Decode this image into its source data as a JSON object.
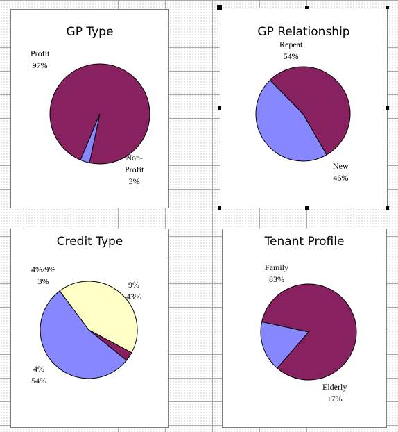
{
  "colors": {
    "maroon": "#87215f",
    "periwinkle": "#8787ff",
    "pale_yellow": "#ffffc6",
    "outline": "#000000"
  },
  "charts": [
    {
      "id": "gp-type",
      "title": "GP Type",
      "slices": [
        {
          "label": "Profit",
          "pct": "97%",
          "value": 97,
          "color": "maroon"
        },
        {
          "label": "Non-Profit",
          "label_lines": [
            "Non-",
            "Profit"
          ],
          "pct": "3%",
          "value": 3,
          "color": "periwinkle"
        }
      ]
    },
    {
      "id": "gp-relationship",
      "title": "GP Relationship",
      "selected": true,
      "slices": [
        {
          "label": "Repeat",
          "pct": "54%",
          "value": 54,
          "color": "maroon"
        },
        {
          "label": "New",
          "pct": "46%",
          "value": 46,
          "color": "periwinkle"
        }
      ]
    },
    {
      "id": "credit-type",
      "title": "Credit Type",
      "slices": [
        {
          "label": "9%",
          "pct": "43%",
          "value": 43,
          "color": "pale_yellow"
        },
        {
          "label": "4%",
          "pct": "54%",
          "value": 54,
          "color": "periwinkle"
        },
        {
          "label": "4%/9%",
          "pct": "3%",
          "value": 3,
          "color": "maroon"
        }
      ]
    },
    {
      "id": "tenant-profile",
      "title": "Tenant Profile",
      "slices": [
        {
          "label": "Family",
          "pct": "83%",
          "value": 83,
          "color": "maroon"
        },
        {
          "label": "Elderly",
          "pct": "17%",
          "value": 17,
          "color": "periwinkle"
        }
      ]
    }
  ],
  "chart_data": [
    {
      "type": "pie",
      "title": "GP Type",
      "categories": [
        "Profit",
        "Non-Profit"
      ],
      "values": [
        97,
        3
      ],
      "legend": "none",
      "data_labels": "category and percent"
    },
    {
      "type": "pie",
      "title": "GP Relationship",
      "categories": [
        "Repeat",
        "New"
      ],
      "values": [
        54,
        46
      ],
      "legend": "none",
      "data_labels": "category and percent"
    },
    {
      "type": "pie",
      "title": "Credit Type",
      "categories": [
        "9%",
        "4%",
        "4%/9%"
      ],
      "values": [
        43,
        54,
        3
      ],
      "legend": "none",
      "data_labels": "category and percent"
    },
    {
      "type": "pie",
      "title": "Tenant Profile",
      "categories": [
        "Family",
        "Elderly"
      ],
      "values": [
        83,
        17
      ],
      "legend": "none",
      "data_labels": "category and percent"
    }
  ]
}
